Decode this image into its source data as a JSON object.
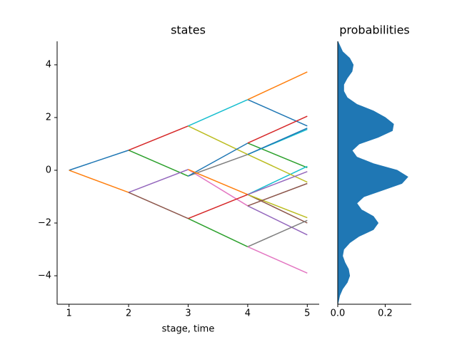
{
  "chart_data": [
    {
      "type": "line",
      "title": "states",
      "xlabel": "stage, time",
      "xlim": [
        0.8,
        5.2
      ],
      "ylim": [
        -5.08,
        4.89
      ],
      "xticks": [
        1,
        2,
        3,
        4,
        5
      ],
      "yticks": [
        {
          "value": -4,
          "label": "−4"
        },
        {
          "value": -2,
          "label": "−2"
        },
        0,
        2,
        4
      ],
      "series": [
        {
          "color": "#1f77b4",
          "x": [
            1,
            2
          ],
          "values": [
            0,
            0.76
          ]
        },
        {
          "color": "#ff7f0e",
          "x": [
            1,
            2
          ],
          "values": [
            0,
            -0.84
          ]
        },
        {
          "color": "#2ca02c",
          "x": [
            2,
            3
          ],
          "values": [
            0.76,
            -0.22
          ]
        },
        {
          "color": "#d62728",
          "x": [
            2,
            3
          ],
          "values": [
            0.76,
            1.68
          ]
        },
        {
          "color": "#9467bd",
          "x": [
            2,
            3
          ],
          "values": [
            -0.84,
            0.03
          ]
        },
        {
          "color": "#8c564b",
          "x": [
            2,
            3
          ],
          "values": [
            -0.84,
            -1.83
          ]
        },
        {
          "color": "#e377c2",
          "x": [
            3,
            4
          ],
          "values": [
            0.03,
            -1.35
          ]
        },
        {
          "color": "#7f7f7f",
          "x": [
            3,
            4
          ],
          "values": [
            -0.22,
            0.6
          ]
        },
        {
          "color": "#bcbd22",
          "x": [
            3,
            4
          ],
          "values": [
            1.68,
            0.6
          ]
        },
        {
          "color": "#17becf",
          "x": [
            3,
            4
          ],
          "values": [
            1.68,
            2.68
          ]
        },
        {
          "color": "#1f77b4",
          "x": [
            3,
            4
          ],
          "values": [
            -0.22,
            1.03
          ]
        },
        {
          "color": "#ff7f0e",
          "x": [
            3,
            4
          ],
          "values": [
            0.03,
            -0.92
          ]
        },
        {
          "color": "#2ca02c",
          "x": [
            3,
            4
          ],
          "values": [
            -1.83,
            -2.9
          ]
        },
        {
          "color": "#d62728",
          "x": [
            3,
            4
          ],
          "values": [
            -1.83,
            -0.92
          ]
        },
        {
          "color": "#1f77b4",
          "x": [
            4,
            5
          ],
          "values": [
            2.68,
            1.68
          ]
        },
        {
          "color": "#ff7f0e",
          "x": [
            4,
            5
          ],
          "values": [
            2.68,
            3.73
          ]
        },
        {
          "color": "#2ca02c",
          "x": [
            4,
            5
          ],
          "values": [
            1.03,
            0.1
          ]
        },
        {
          "color": "#d62728",
          "x": [
            4,
            5
          ],
          "values": [
            1.03,
            2.05
          ]
        },
        {
          "color": "#9467bd",
          "x": [
            4,
            5
          ],
          "values": [
            -1.35,
            -2.45
          ]
        },
        {
          "color": "#8c564b",
          "x": [
            4,
            5
          ],
          "values": [
            -0.92,
            -2.0
          ]
        },
        {
          "color": "#7f7f7f",
          "x": [
            4,
            5
          ],
          "values": [
            -2.9,
            -1.9
          ]
        },
        {
          "color": "#bcbd22",
          "x": [
            4,
            5
          ],
          "values": [
            -0.92,
            -1.8
          ]
        },
        {
          "color": "#17becf",
          "x": [
            4,
            5
          ],
          "values": [
            0.6,
            1.55
          ]
        },
        {
          "color": "#17becf",
          "x": [
            4,
            5
          ],
          "values": [
            -0.92,
            0.15
          ]
        },
        {
          "color": "#bcbd22",
          "x": [
            4,
            5
          ],
          "values": [
            0.6,
            -0.45
          ]
        },
        {
          "color": "#e377c2",
          "x": [
            4,
            5
          ],
          "values": [
            -2.9,
            -3.9
          ]
        },
        {
          "color": "#9467bd",
          "x": [
            4,
            5
          ],
          "values": [
            -0.92,
            -0.05
          ]
        },
        {
          "color": "#8c564b",
          "x": [
            4,
            5
          ],
          "values": [
            -1.35,
            -0.5
          ]
        },
        {
          "color": "#1f77b4",
          "x": [
            4,
            5
          ],
          "values": [
            0.6,
            1.6
          ]
        }
      ]
    },
    {
      "type": "density",
      "title": "probabilities",
      "color": "#1f77b4",
      "xlim": [
        0,
        0.31
      ],
      "ylim": [
        -5.08,
        4.89
      ],
      "xticks": [
        {
          "value": 0,
          "label": "0.0"
        },
        {
          "value": 0.2,
          "label": "0.2"
        }
      ],
      "y": [
        4.89,
        4.5,
        4.25,
        4.0,
        3.75,
        3.5,
        3.25,
        3.0,
        2.75,
        2.5,
        2.25,
        2.0,
        1.75,
        1.5,
        1.25,
        1.0,
        0.75,
        0.5,
        0.25,
        0.0,
        -0.25,
        -0.5,
        -0.75,
        -1.0,
        -1.25,
        -1.5,
        -1.75,
        -2.0,
        -2.25,
        -2.5,
        -2.75,
        -3.0,
        -3.25,
        -3.5,
        -3.75,
        -4.0,
        -4.25,
        -4.5,
        -4.75,
        -5.08
      ],
      "values": [
        0.0,
        0.02,
        0.05,
        0.065,
        0.06,
        0.04,
        0.025,
        0.025,
        0.04,
        0.08,
        0.15,
        0.2,
        0.235,
        0.23,
        0.17,
        0.09,
        0.06,
        0.08,
        0.15,
        0.25,
        0.295,
        0.27,
        0.19,
        0.11,
        0.08,
        0.1,
        0.15,
        0.17,
        0.15,
        0.09,
        0.05,
        0.025,
        0.02,
        0.03,
        0.045,
        0.05,
        0.04,
        0.02,
        0.008,
        0.0
      ]
    }
  ]
}
